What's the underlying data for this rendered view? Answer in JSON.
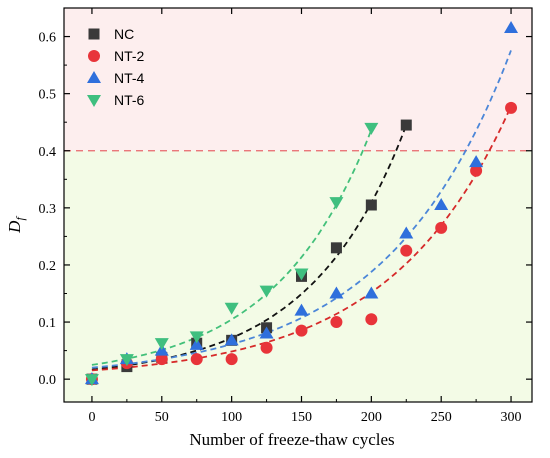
{
  "chart_data": {
    "type": "scatter",
    "xlabel": "Number of freeze-thaw cycles",
    "ylabel": "D",
    "ylabel_sub": "f",
    "xlim": [
      -20,
      315
    ],
    "ylim": [
      -0.04,
      0.65
    ],
    "xticks": [
      0,
      50,
      100,
      150,
      200,
      250,
      300
    ],
    "yticks": [
      0.0,
      0.1,
      0.2,
      0.3,
      0.4,
      0.5,
      0.6
    ],
    "xtick_labels": [
      "0",
      "50",
      "100",
      "150",
      "200",
      "250",
      "300"
    ],
    "ytick_labels": [
      "0.0",
      "0.1",
      "0.2",
      "0.3",
      "0.4",
      "0.5",
      "0.6"
    ],
    "threshold": 0.4,
    "regions": [
      {
        "from": 0.4,
        "to": 0.65,
        "color": "#fdeeee"
      },
      {
        "from": -0.04,
        "to": 0.4,
        "color": "#f3fbe6"
      }
    ],
    "legend_position": "top-left",
    "series": [
      {
        "name": "NC",
        "marker": "square",
        "color": "#3a3a3a",
        "fit_color": "#111111",
        "x": [
          0,
          25,
          50,
          75,
          100,
          125,
          150,
          175,
          200,
          225
        ],
        "y": [
          0.0,
          0.022,
          0.038,
          0.063,
          0.068,
          0.09,
          0.18,
          0.23,
          0.305,
          0.445
        ],
        "fit_a": 0.0168,
        "fit_b": 0.01456
      },
      {
        "name": "NT-2",
        "marker": "circle",
        "color": "#e8343a",
        "fit_color": "#d62a2a",
        "x": [
          0,
          25,
          50,
          75,
          100,
          125,
          150,
          175,
          200,
          225,
          250,
          275,
          300
        ],
        "y": [
          0.0,
          0.028,
          0.035,
          0.035,
          0.035,
          0.055,
          0.085,
          0.1,
          0.105,
          0.225,
          0.265,
          0.365,
          0.475
        ],
        "fit_a": 0.0154,
        "fit_b": 0.01145
      },
      {
        "name": "NT-4",
        "marker": "triangle-up",
        "color": "#2f6fdc",
        "fit_color": "#4b86d8",
        "x": [
          0,
          25,
          50,
          75,
          100,
          125,
          150,
          175,
          200,
          225,
          250,
          275,
          300
        ],
        "y": [
          0.0,
          0.035,
          0.05,
          0.06,
          0.068,
          0.08,
          0.12,
          0.15,
          0.15,
          0.255,
          0.305,
          0.38,
          0.615
        ],
        "fit_a": 0.02,
        "fit_b": 0.0112
      },
      {
        "name": "NT-6",
        "marker": "triangle-down",
        "color": "#3fbf7f",
        "fit_color": "#43c07a",
        "x": [
          0,
          25,
          50,
          75,
          100,
          125,
          150,
          175,
          200
        ],
        "y": [
          0.0,
          0.035,
          0.063,
          0.075,
          0.125,
          0.155,
          0.185,
          0.31,
          0.44
        ],
        "fit_a": 0.025,
        "fit_b": 0.0143
      }
    ]
  }
}
